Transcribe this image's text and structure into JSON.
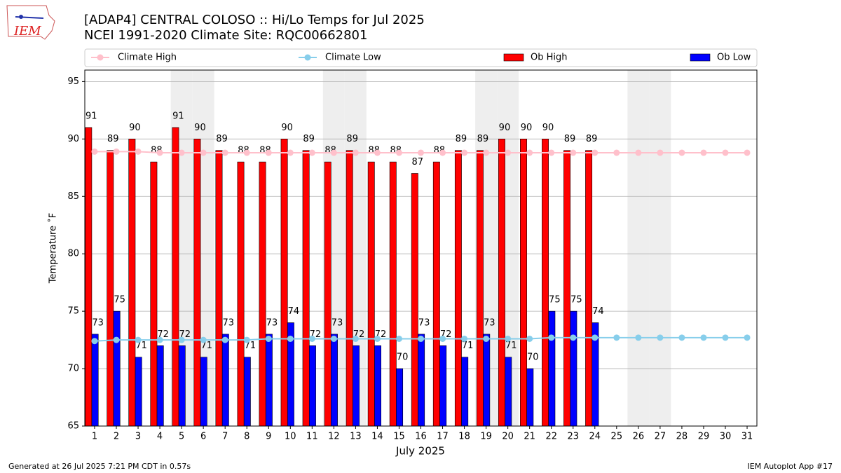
{
  "chart_data": {
    "type": "bar",
    "title": "[ADAP4] CENTRAL COLOSO :: Hi/Lo Temps for Jul 2025",
    "subtitle": "NCEI 1991-2020 Climate Site: RQC00662801",
    "logo_text": "IEM",
    "y_label": "Temperature ˚F",
    "x_label": "July 2025",
    "footer_left": "Generated at 26 Jul 2025 7:21 PM CDT in 0.57s",
    "footer_right": "IEM Autoplot App #17",
    "x": [
      1,
      2,
      3,
      4,
      5,
      6,
      7,
      8,
      9,
      10,
      11,
      12,
      13,
      14,
      15,
      16,
      17,
      18,
      19,
      20,
      21,
      22,
      23,
      24,
      25,
      26,
      27,
      28,
      29,
      30,
      31
    ],
    "xlim": [
      0.55,
      31.45
    ],
    "xticks": [
      1,
      2,
      3,
      4,
      5,
      6,
      7,
      8,
      9,
      10,
      11,
      12,
      13,
      14,
      15,
      16,
      17,
      18,
      19,
      20,
      21,
      22,
      23,
      24,
      25,
      26,
      27,
      28,
      29,
      30,
      31
    ],
    "ylim": [
      65,
      96
    ],
    "yticks": [
      65,
      70,
      75,
      80,
      85,
      90,
      95
    ],
    "grid": true,
    "legend": "top",
    "shaded_days": [
      5,
      6,
      12,
      13,
      19,
      20,
      26,
      27
    ],
    "shade_color": "#eeeeee",
    "series": [
      {
        "name": "Climate High",
        "kind": "line",
        "color": "#ffc0cb",
        "values": [
          88.9,
          88.9,
          88.9,
          88.8,
          88.8,
          88.8,
          88.8,
          88.8,
          88.8,
          88.8,
          88.8,
          88.8,
          88.8,
          88.8,
          88.8,
          88.8,
          88.8,
          88.8,
          88.8,
          88.8,
          88.8,
          88.8,
          88.8,
          88.8,
          88.8,
          88.8,
          88.8,
          88.8,
          88.8,
          88.8,
          88.8
        ]
      },
      {
        "name": "Climate Low",
        "kind": "line",
        "color": "#87ceeb",
        "values": [
          72.4,
          72.5,
          72.5,
          72.5,
          72.5,
          72.5,
          72.5,
          72.5,
          72.6,
          72.6,
          72.6,
          72.6,
          72.6,
          72.6,
          72.6,
          72.6,
          72.6,
          72.6,
          72.6,
          72.6,
          72.6,
          72.7,
          72.7,
          72.7,
          72.7,
          72.7,
          72.7,
          72.7,
          72.7,
          72.7,
          72.7
        ]
      },
      {
        "name": "Ob High",
        "kind": "bar",
        "color": "#ff0000",
        "values": [
          91,
          89,
          90,
          88,
          91,
          90,
          89,
          88,
          88,
          90,
          89,
          88,
          89,
          88,
          88,
          87,
          88,
          89,
          89,
          90,
          90,
          90,
          89,
          89,
          null,
          null,
          null,
          null,
          null,
          null,
          null
        ]
      },
      {
        "name": "Ob Low",
        "kind": "bar",
        "color": "#0000ff",
        "values": [
          73,
          75,
          71,
          72,
          72,
          71,
          73,
          71,
          73,
          74,
          72,
          73,
          72,
          72,
          70,
          73,
          72,
          71,
          73,
          71,
          70,
          75,
          75,
          74,
          null,
          null,
          null,
          null,
          null,
          null,
          null
        ]
      }
    ]
  }
}
